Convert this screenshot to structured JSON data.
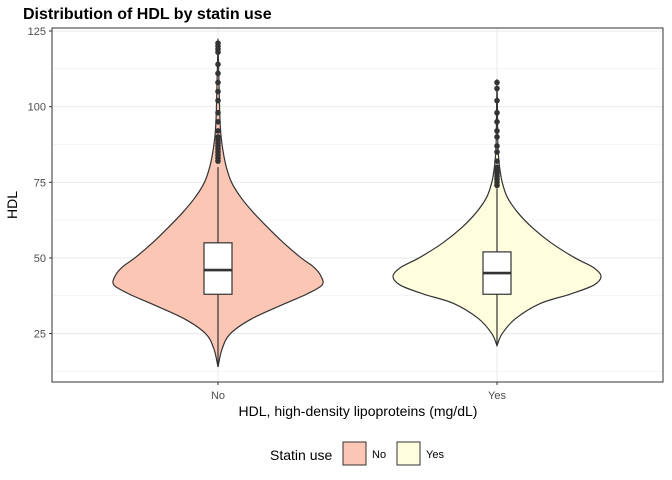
{
  "chart_data": {
    "type": "violin",
    "title": "Distribution of HDL by statin use",
    "xlabel": "HDL, high-density lipoproteins (mg/dL)",
    "ylabel": "HDL",
    "categories": [
      "No",
      "Yes"
    ],
    "ylim": [
      9,
      126
    ],
    "yticks": [
      25,
      50,
      75,
      100,
      125
    ],
    "grid": true,
    "legend": {
      "title": "Statin use",
      "position": "bottom",
      "entries": [
        "No",
        "Yes"
      ]
    },
    "colors": {
      "No": "#fcc6b5",
      "Yes": "#fefedf",
      "outline": "#333333",
      "grid": "#ebebeb",
      "panel_border": "#333333"
    },
    "series": [
      {
        "category": "No",
        "violin_min": 14,
        "violin_max": 121,
        "density_profile": [
          [
            14,
            0.0
          ],
          [
            20,
            0.04
          ],
          [
            25,
            0.12
          ],
          [
            30,
            0.33
          ],
          [
            35,
            0.65
          ],
          [
            38,
            0.85
          ],
          [
            41,
            1.0
          ],
          [
            44,
            0.99
          ],
          [
            47,
            0.92
          ],
          [
            50,
            0.8
          ],
          [
            55,
            0.63
          ],
          [
            60,
            0.48
          ],
          [
            65,
            0.34
          ],
          [
            70,
            0.22
          ],
          [
            75,
            0.13
          ],
          [
            80,
            0.08
          ],
          [
            85,
            0.05
          ],
          [
            90,
            0.03
          ],
          [
            95,
            0.02
          ],
          [
            100,
            0.015
          ],
          [
            110,
            0.008
          ],
          [
            121,
            0.0
          ]
        ],
        "box": {
          "q1": 38,
          "median": 46,
          "q3": 55,
          "whisker_low": 14,
          "whisker_high": 80
        },
        "outliers": [
          82,
          83,
          84,
          85,
          86,
          87,
          88,
          89,
          90,
          92,
          95,
          98,
          102,
          105,
          108,
          111,
          114,
          118,
          119,
          120,
          121
        ]
      },
      {
        "category": "Yes",
        "violin_min": 21,
        "violin_max": 108,
        "density_profile": [
          [
            21,
            0.0
          ],
          [
            25,
            0.05
          ],
          [
            30,
            0.18
          ],
          [
            35,
            0.42
          ],
          [
            38,
            0.7
          ],
          [
            41,
            0.93
          ],
          [
            44,
            1.0
          ],
          [
            47,
            0.92
          ],
          [
            50,
            0.75
          ],
          [
            55,
            0.52
          ],
          [
            60,
            0.34
          ],
          [
            65,
            0.2
          ],
          [
            70,
            0.1
          ],
          [
            75,
            0.05
          ],
          [
            80,
            0.025
          ],
          [
            85,
            0.012
          ],
          [
            90,
            0.007
          ],
          [
            100,
            0.004
          ],
          [
            108,
            0.0
          ]
        ],
        "box": {
          "q1": 38,
          "median": 45,
          "q3": 52,
          "whisker_low": 21,
          "whisker_high": 73
        },
        "outliers": [
          74,
          75,
          76,
          77,
          78,
          79,
          80,
          82,
          85,
          87,
          90,
          92,
          95,
          98,
          102,
          106,
          108
        ]
      }
    ]
  }
}
